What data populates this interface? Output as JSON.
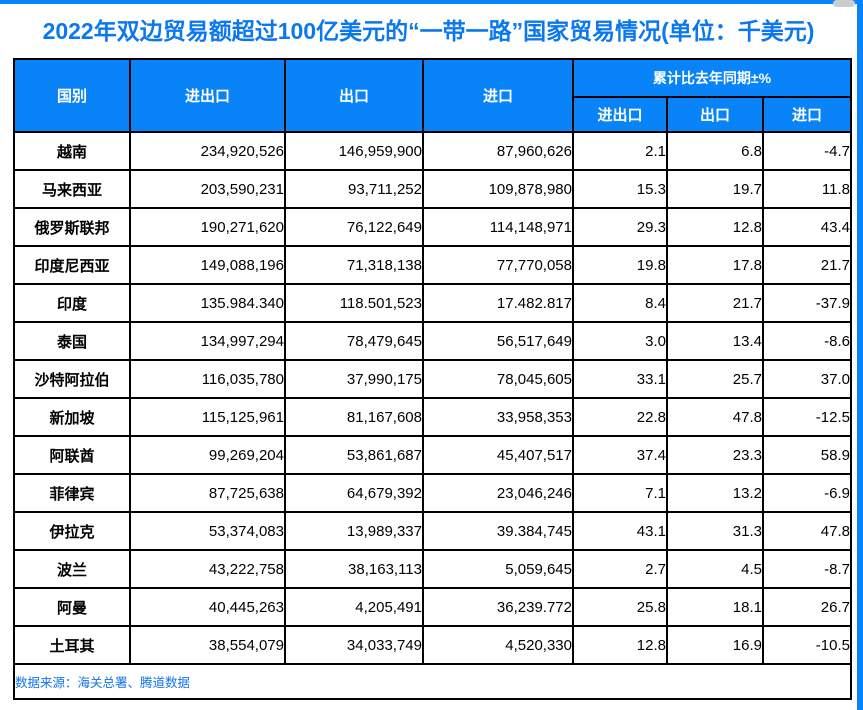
{
  "page": {
    "title": "2022年双边贸易额超过100亿美元的“一带一路”国家贸易情况(单位：千美元)",
    "source_note": "数据来源：海关总署、腾道数据"
  },
  "colors": {
    "accent_blue": "#0984F8",
    "title_blue": "#0C78F0",
    "source_blue": "#1273E8",
    "border_black": "#000000"
  },
  "table": {
    "headers": {
      "country": "国别",
      "total": "进出口",
      "export": "出口",
      "import": "进口",
      "yoy_group": "累计比去年同期±%",
      "yoy_total": "进出口",
      "yoy_export": "出口",
      "yoy_import": "进口"
    },
    "rows": [
      {
        "country": "越南",
        "total": "234,920,526",
        "export": "146,959,900",
        "import": "87,960,626",
        "yoy_total": "2.1",
        "yoy_export": "6.8",
        "yoy_import": "-4.7"
      },
      {
        "country": "马来西亚",
        "total": "203,590,231",
        "export": "93,711,252",
        "import": "109,878,980",
        "yoy_total": "15.3",
        "yoy_export": "19.7",
        "yoy_import": "11.8"
      },
      {
        "country": "俄罗斯联邦",
        "total": "190,271,620",
        "export": "76,122,649",
        "import": "114,148,971",
        "yoy_total": "29.3",
        "yoy_export": "12.8",
        "yoy_import": "43.4"
      },
      {
        "country": "印度尼西亚",
        "total": "149,088,196",
        "export": "71,318,138",
        "import": "77,770,058",
        "yoy_total": "19.8",
        "yoy_export": "17.8",
        "yoy_import": "21.7"
      },
      {
        "country": "印度",
        "total": "135.984.340",
        "export": "118.501,523",
        "import": "17.482.817",
        "yoy_total": "8.4",
        "yoy_export": "21.7",
        "yoy_import": "-37.9"
      },
      {
        "country": "泰国",
        "total": "134,997,294",
        "export": "78,479,645",
        "import": "56,517,649",
        "yoy_total": "3.0",
        "yoy_export": "13.4",
        "yoy_import": "-8.6"
      },
      {
        "country": "沙特阿拉伯",
        "total": "116,035,780",
        "export": "37,990,175",
        "import": "78,045,605",
        "yoy_total": "33.1",
        "yoy_export": "25.7",
        "yoy_import": "37.0"
      },
      {
        "country": "新加坡",
        "total": "115,125,961",
        "export": "81,167,608",
        "import": "33,958,353",
        "yoy_total": "22.8",
        "yoy_export": "47.8",
        "yoy_import": "-12.5"
      },
      {
        "country": "阿联酋",
        "total": "99,269,204",
        "export": "53,861,687",
        "import": "45,407,517",
        "yoy_total": "37.4",
        "yoy_export": "23.3",
        "yoy_import": "58.9"
      },
      {
        "country": "菲律宾",
        "total": "87,725,638",
        "export": "64,679,392",
        "import": "23,046,246",
        "yoy_total": "7.1",
        "yoy_export": "13.2",
        "yoy_import": "-6.9"
      },
      {
        "country": "伊拉克",
        "total": "53,374,083",
        "export": "13,989,337",
        "import": "39.384,745",
        "yoy_total": "43.1",
        "yoy_export": "31.3",
        "yoy_import": "47.8"
      },
      {
        "country": "波兰",
        "total": "43,222,758",
        "export": "38,163,113",
        "import": "5,059,645",
        "yoy_total": "2.7",
        "yoy_export": "4.5",
        "yoy_import": "-8.7"
      },
      {
        "country": "阿曼",
        "total": "40,445,263",
        "export": "4,205,491",
        "import": "36,239.772",
        "yoy_total": "25.8",
        "yoy_export": "18.1",
        "yoy_import": "26.7"
      },
      {
        "country": "土耳其",
        "total": "38,554,079",
        "export": "34,033,749",
        "import": "4,520,330",
        "yoy_total": "12.8",
        "yoy_export": "16.9",
        "yoy_import": "-10.5"
      }
    ]
  }
}
